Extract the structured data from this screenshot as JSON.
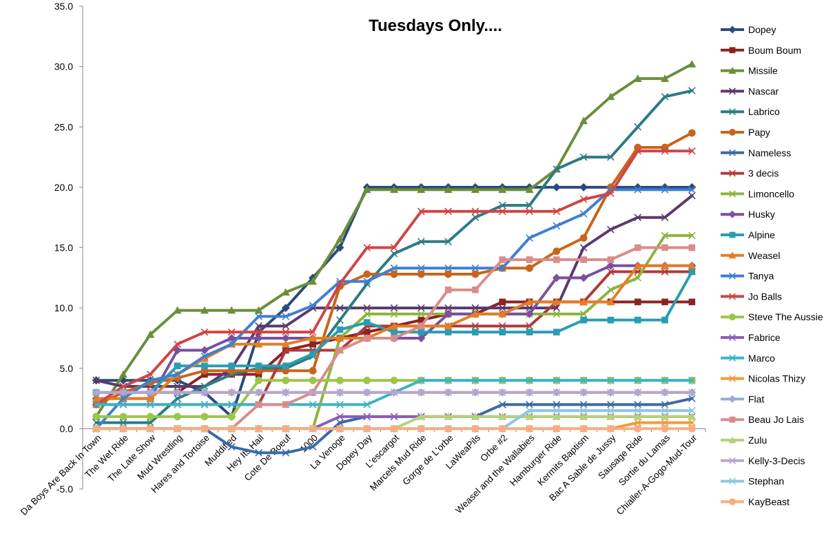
{
  "chart_data": {
    "type": "line",
    "title": "Tuesdays Only....",
    "xlabel": "",
    "ylabel": "",
    "ylim": [
      -5,
      35
    ],
    "yticks": [
      "-5.0",
      "0.0",
      "5.0",
      "10.0",
      "15.0",
      "20.0",
      "25.0",
      "30.0",
      "35.0"
    ],
    "grid": false,
    "legend_position": "right",
    "categories": [
      "Da Boys Are Back In Town",
      "The Wet Ride",
      "The Late Show",
      "Mud Wrestling",
      "Hares and Tortoise",
      "Muddified",
      "Hey Its Hail",
      "Cote De Boeuf",
      "1000",
      "La Venoge",
      "Dopey Day",
      "L'escargot",
      "Marcels Mud Ride",
      "Gorge de L'orbe",
      "LaWeaPils",
      "Orbe #2",
      "Weasel and the Wallabies",
      "Hamburger Ride",
      "Kermits Baptism",
      "Bac A Sable de Jussy",
      "Sausage Ride",
      "Sortie du Lamas",
      "Chialler-A-Gogo-Mud-Tour"
    ],
    "series": [
      {
        "name": "Dopey",
        "color": "#2A4B7C",
        "marker": "diamond",
        "values": [
          4,
          4,
          4,
          4,
          3,
          1,
          8,
          10,
          12.5,
          15,
          20,
          20,
          20,
          20,
          20,
          20,
          20,
          20,
          20,
          20,
          20,
          20,
          20
        ]
      },
      {
        "name": "Boum Boum",
        "color": "#8B2323",
        "marker": "square",
        "values": [
          3,
          3,
          3,
          3,
          4.5,
          4.5,
          4.5,
          6.5,
          7,
          7.5,
          8,
          8.5,
          9,
          9.5,
          9.5,
          10.5,
          10.5,
          10.5,
          10.5,
          10.5,
          10.5,
          10.5,
          10.5
        ]
      },
      {
        "name": "Missile",
        "color": "#6B8E3A",
        "marker": "triangle",
        "values": [
          1,
          4.5,
          7.8,
          9.8,
          9.8,
          9.8,
          9.8,
          11.3,
          12.2,
          15.7,
          19.8,
          19.8,
          19.8,
          19.8,
          19.8,
          19.8,
          19.8,
          21.5,
          25.5,
          27.5,
          29,
          29,
          30.2
        ]
      },
      {
        "name": "Nascar",
        "color": "#5B3A6E",
        "marker": "x",
        "values": [
          4,
          3.5,
          3.5,
          3.5,
          3.5,
          5,
          8.5,
          8.5,
          10,
          10,
          10,
          10,
          10,
          10,
          10,
          10,
          10,
          10,
          15,
          16.5,
          17.5,
          17.5,
          19.3
        ]
      },
      {
        "name": "Labrico",
        "color": "#2C7B86",
        "marker": "x",
        "values": [
          0.5,
          0.5,
          0.5,
          2.5,
          3.5,
          4.5,
          5,
          5,
          6,
          9,
          12,
          14.5,
          15.5,
          15.5,
          17.5,
          18.5,
          18.5,
          21.5,
          22.5,
          22.5,
          25,
          27.5,
          28
        ]
      },
      {
        "name": "Papy",
        "color": "#C8651B",
        "marker": "circle",
        "values": [
          2,
          3,
          3.8,
          4.2,
          4.8,
          4.8,
          4.8,
          4.8,
          4.8,
          11.8,
          12.8,
          12.8,
          12.8,
          12.8,
          12.8,
          13.3,
          13.3,
          14.7,
          15.8,
          20,
          23.3,
          23.3,
          24.5
        ]
      },
      {
        "name": "Nameless",
        "color": "#3A6AA6",
        "marker": "x",
        "values": [
          0,
          0,
          0,
          0,
          0,
          -1.5,
          -2,
          -2,
          -1.5,
          0.5,
          1,
          1,
          1,
          1,
          1,
          2,
          2,
          2,
          2,
          2,
          2,
          2,
          2.5
        ]
      },
      {
        "name": "3 decis",
        "color": "#B03A3A",
        "marker": "x",
        "values": [
          2,
          2,
          2,
          2,
          2,
          2,
          2,
          6.5,
          6.5,
          6.5,
          8.5,
          8.5,
          8.5,
          8.5,
          8.5,
          8.5,
          8.5,
          10.5,
          10.5,
          13,
          13,
          13,
          13
        ]
      },
      {
        "name": "Limoncello",
        "color": "#8DB43C",
        "marker": "x",
        "values": [
          0,
          0,
          0,
          0,
          0,
          0,
          0,
          0,
          0,
          7.5,
          9.5,
          9.5,
          9.5,
          9.5,
          9.5,
          9.5,
          9.5,
          9.5,
          9.5,
          11.5,
          12.5,
          16,
          16
        ]
      },
      {
        "name": "Husky",
        "color": "#7A4FA0",
        "marker": "diamond",
        "values": [
          2.5,
          2.5,
          2.5,
          6.5,
          6.5,
          7.5,
          7.5,
          7.5,
          7.5,
          7.5,
          7.5,
          7.5,
          7.5,
          9.5,
          9.5,
          9.5,
          9.5,
          12.5,
          12.5,
          13.5,
          13.5,
          13.5,
          13.5
        ]
      },
      {
        "name": "Alpine",
        "color": "#2A9DB0",
        "marker": "square",
        "values": [
          3,
          3,
          3,
          5.2,
          5.2,
          5.2,
          5.2,
          5.2,
          6.2,
          8.2,
          8.8,
          8,
          8,
          8,
          8,
          8,
          8,
          8,
          9,
          9,
          9,
          9,
          13
        ]
      },
      {
        "name": "Weasel",
        "color": "#E57D24",
        "marker": "triangle",
        "values": [
          2.5,
          2.5,
          2.5,
          4.5,
          5.8,
          7,
          7,
          7,
          7.5,
          7.5,
          7.5,
          8.5,
          8.5,
          8.5,
          9.5,
          9.5,
          10.5,
          10.5,
          10.5,
          10.5,
          13.5,
          13.5,
          13.5
        ]
      },
      {
        "name": "Tanya",
        "color": "#3F7FD0",
        "marker": "x",
        "values": [
          0,
          2.5,
          4,
          4.5,
          6,
          7,
          9.3,
          9.3,
          10.2,
          12.2,
          12.2,
          13.3,
          13.3,
          13.3,
          13.3,
          13.3,
          15.8,
          16.8,
          17.8,
          19.8,
          19.8,
          19.8,
          19.8
        ]
      },
      {
        "name": "Jo Balls",
        "color": "#D04545",
        "marker": "x",
        "values": [
          2,
          3.5,
          4.5,
          7,
          8,
          8,
          8,
          8,
          8,
          12,
          15,
          15,
          18,
          18,
          18,
          18,
          18,
          18,
          19,
          19.5,
          23,
          23,
          23
        ]
      },
      {
        "name": "Steve The Aussie",
        "color": "#9BC649",
        "marker": "circle",
        "values": [
          1,
          1,
          1,
          1,
          1,
          1,
          4,
          4,
          4,
          4,
          4,
          4,
          4,
          4,
          4,
          4,
          4,
          4,
          4,
          4,
          4,
          4,
          4
        ]
      },
      {
        "name": "Fabrice",
        "color": "#8C5DB8",
        "marker": "x",
        "values": [
          0,
          0,
          0,
          0,
          0,
          0,
          0,
          0,
          0,
          1,
          1,
          1,
          1,
          1,
          1,
          1,
          1,
          1,
          1,
          1,
          1,
          1,
          1
        ]
      },
      {
        "name": "Marco",
        "color": "#3CB3C6",
        "marker": "x",
        "values": [
          2,
          2,
          2,
          2,
          2,
          2,
          2,
          2,
          2,
          2,
          2,
          3,
          4,
          4,
          4,
          4,
          4,
          4,
          4,
          4,
          4,
          4,
          4
        ]
      },
      {
        "name": "Nicolas Thizy",
        "color": "#F49A3C",
        "marker": "x",
        "values": [
          0,
          0,
          0,
          0,
          0,
          0,
          0,
          0,
          0,
          0,
          0,
          0,
          0,
          0,
          0,
          0,
          0,
          0,
          0,
          0,
          0.5,
          0.5,
          0.5
        ]
      },
      {
        "name": "Flat",
        "color": "#9AAAD0",
        "marker": "diamond",
        "values": [
          3,
          3,
          3,
          3,
          3,
          3,
          3,
          3,
          3,
          3,
          3,
          3,
          3,
          3,
          3,
          3,
          3,
          3,
          3,
          3,
          3,
          3,
          3
        ]
      },
      {
        "name": "Beau Jo Lais",
        "color": "#D98C8C",
        "marker": "square",
        "values": [
          0,
          0,
          0,
          0,
          0,
          0,
          2,
          2,
          3,
          6.5,
          7.5,
          7.5,
          8.5,
          11.5,
          11.5,
          14,
          14,
          14,
          14,
          14,
          15,
          15,
          15
        ]
      },
      {
        "name": "Zulu",
        "color": "#B5D27A",
        "marker": "triangle",
        "values": [
          0,
          0,
          0,
          0,
          0,
          0,
          0,
          0,
          0,
          0,
          0,
          0,
          1,
          1,
          1,
          1,
          1,
          1,
          1,
          1,
          1,
          1,
          1
        ]
      },
      {
        "name": "Kelly-3-Decis",
        "color": "#B7A6CC",
        "marker": "x",
        "values": [
          3,
          3,
          3,
          3,
          3,
          3,
          3,
          3,
          3,
          3,
          3,
          3,
          3,
          3,
          3,
          3,
          3,
          3,
          3,
          3,
          3,
          3,
          3
        ]
      },
      {
        "name": "Stephan",
        "color": "#8FC6E0",
        "marker": "x",
        "values": [
          0,
          0,
          0,
          0,
          0,
          0,
          0,
          0,
          0,
          0,
          0,
          0,
          0,
          0,
          0,
          0,
          1.5,
          1.5,
          1.5,
          1.5,
          1.5,
          1.5,
          1.5
        ]
      },
      {
        "name": "KayBeast",
        "color": "#F5AE82",
        "marker": "circle",
        "values": [
          0,
          0,
          0,
          0,
          0,
          0,
          0,
          0,
          0,
          0,
          0,
          0,
          0,
          0,
          0,
          0,
          0,
          0,
          0,
          0,
          0,
          0,
          0
        ]
      }
    ]
  }
}
